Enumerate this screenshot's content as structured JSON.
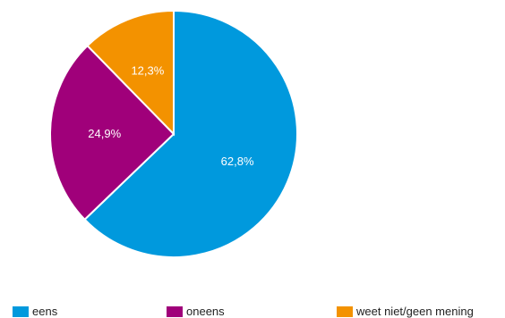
{
  "chart_data": {
    "type": "pie",
    "categories": [
      "eens",
      "oneens",
      "weet niet/geen mening"
    ],
    "values": [
      62.8,
      24.9,
      12.3
    ],
    "labels": [
      "62,8%",
      "24,9%",
      "12,3%"
    ],
    "colors": [
      "#0099dd",
      "#a0007a",
      "#f39200"
    ],
    "legend_position": "bottom"
  }
}
